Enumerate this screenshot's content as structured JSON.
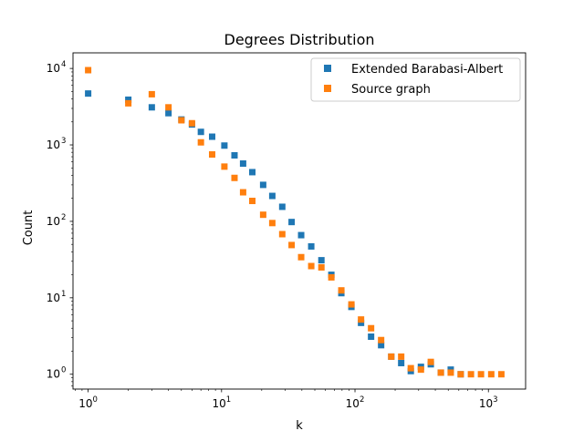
{
  "chart_data": {
    "type": "scatter",
    "title": "Degrees Distribution",
    "xlabel": "k",
    "ylabel": "Count",
    "xscale": "log",
    "yscale": "log",
    "xlim": [
      0.77,
      1900
    ],
    "ylim": [
      0.64,
      16000
    ],
    "x_ticks": [
      {
        "value": 1,
        "base": "10",
        "exp": "0"
      },
      {
        "value": 10,
        "base": "10",
        "exp": "1"
      },
      {
        "value": 100,
        "base": "10",
        "exp": "2"
      },
      {
        "value": 1000,
        "base": "10",
        "exp": "3"
      }
    ],
    "y_ticks": [
      {
        "value": 1,
        "base": "10",
        "exp": "0"
      },
      {
        "value": 10,
        "base": "10",
        "exp": "1"
      },
      {
        "value": 100,
        "base": "10",
        "exp": "2"
      },
      {
        "value": 1000,
        "base": "10",
        "exp": "3"
      },
      {
        "value": 10000,
        "base": "10",
        "exp": "4"
      }
    ],
    "grid": false,
    "legend_position": "top-right",
    "series": [
      {
        "name": "Extended Barabasi-Albert",
        "color": "#1f77b4",
        "marker": "square",
        "points": [
          [
            1,
            4700
          ],
          [
            2,
            3900
          ],
          [
            3,
            3100
          ],
          [
            4,
            2600
          ],
          [
            5,
            2150
          ],
          [
            6,
            1850
          ],
          [
            7,
            1480
          ],
          [
            8.5,
            1280
          ],
          [
            10.5,
            980
          ],
          [
            12.5,
            730
          ],
          [
            14.5,
            570
          ],
          [
            17,
            440
          ],
          [
            20.5,
            300
          ],
          [
            24,
            215
          ],
          [
            28.5,
            155
          ],
          [
            33.5,
            98
          ],
          [
            39.5,
            66
          ],
          [
            47,
            47
          ],
          [
            56,
            31
          ],
          [
            66.5,
            20
          ],
          [
            79,
            11.5
          ],
          [
            94,
            7.6
          ],
          [
            111,
            4.7
          ],
          [
            132,
            3.1
          ],
          [
            157,
            2.4
          ],
          [
            187,
            1.7
          ],
          [
            222,
            1.4
          ],
          [
            262,
            1.1
          ],
          [
            312,
            1.25
          ],
          [
            370,
            1.35
          ],
          [
            440,
            1.05
          ],
          [
            522,
            1.15
          ],
          [
            620,
            1.0
          ]
        ]
      },
      {
        "name": "Source graph",
        "color": "#ff7f0e",
        "marker": "square",
        "points": [
          [
            1,
            9500
          ],
          [
            2,
            3500
          ],
          [
            3,
            4600
          ],
          [
            4,
            3100
          ],
          [
            5,
            2100
          ],
          [
            6,
            1920
          ],
          [
            7,
            1080
          ],
          [
            8.5,
            750
          ],
          [
            10.5,
            520
          ],
          [
            12.5,
            370
          ],
          [
            14.5,
            240
          ],
          [
            17,
            185
          ],
          [
            20.5,
            122
          ],
          [
            24,
            95
          ],
          [
            28.5,
            68
          ],
          [
            33.5,
            49
          ],
          [
            39.5,
            34
          ],
          [
            47,
            26
          ],
          [
            56,
            25
          ],
          [
            66.5,
            18.5
          ],
          [
            79,
            12.5
          ],
          [
            94,
            8.2
          ],
          [
            111,
            5.2
          ],
          [
            132,
            4.0
          ],
          [
            157,
            2.8
          ],
          [
            187,
            1.7
          ],
          [
            222,
            1.7
          ],
          [
            262,
            1.2
          ],
          [
            312,
            1.15
          ],
          [
            370,
            1.45
          ],
          [
            440,
            1.05
          ],
          [
            522,
            1.05
          ],
          [
            620,
            1.0
          ],
          [
            740,
            1.0
          ],
          [
            880,
            1.0
          ],
          [
            1050,
            1.0
          ],
          [
            1250,
            1.0
          ]
        ]
      }
    ]
  }
}
